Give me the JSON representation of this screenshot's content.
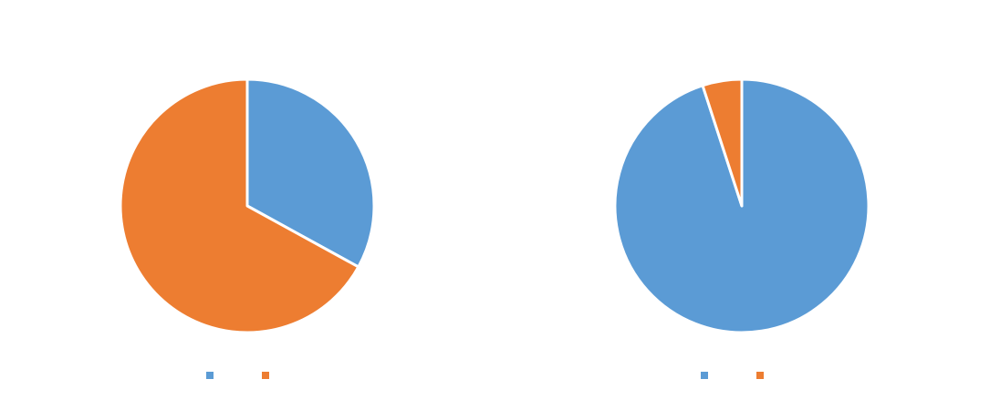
{
  "chart_data": [
    {
      "type": "pie",
      "title": "",
      "start_angle_deg": 0,
      "direction": "clockwise",
      "legend_position": "bottom",
      "slices": [
        {
          "label": "",
          "value": 33,
          "color": "#5B9BD5"
        },
        {
          "label": "",
          "value": 67,
          "color": "#ED7D31"
        }
      ]
    },
    {
      "type": "pie",
      "title": "",
      "start_angle_deg": 0,
      "direction": "clockwise",
      "legend_position": "bottom",
      "slices": [
        {
          "label": "",
          "value": 95,
          "color": "#5B9BD5"
        },
        {
          "label": "",
          "value": 5,
          "color": "#ED7D31"
        }
      ]
    }
  ]
}
